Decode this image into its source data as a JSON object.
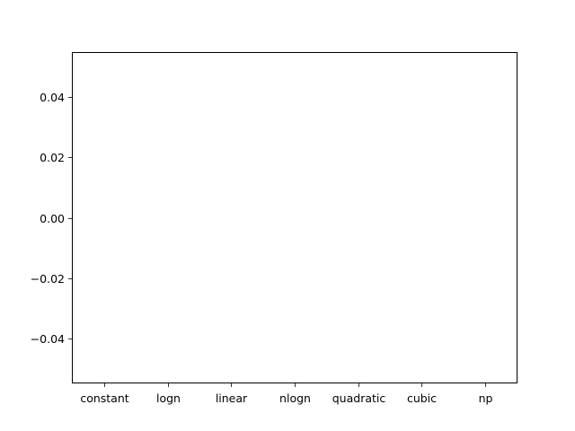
{
  "chart_data": {
    "type": "bar",
    "categories": [
      "constant",
      "logn",
      "linear",
      "nlogn",
      "quadratic",
      "cubic",
      "np"
    ],
    "values": [
      0,
      0,
      0,
      0,
      0,
      0,
      0
    ],
    "ylim": [
      -0.055,
      0.055
    ],
    "yticks": [
      0.04,
      0.02,
      0.0,
      -0.02,
      -0.04
    ],
    "ytick_labels": [
      "0.04",
      "0.02",
      "0.00",
      "−0.02",
      "−0.04"
    ],
    "xlabel": "",
    "grid": false
  }
}
